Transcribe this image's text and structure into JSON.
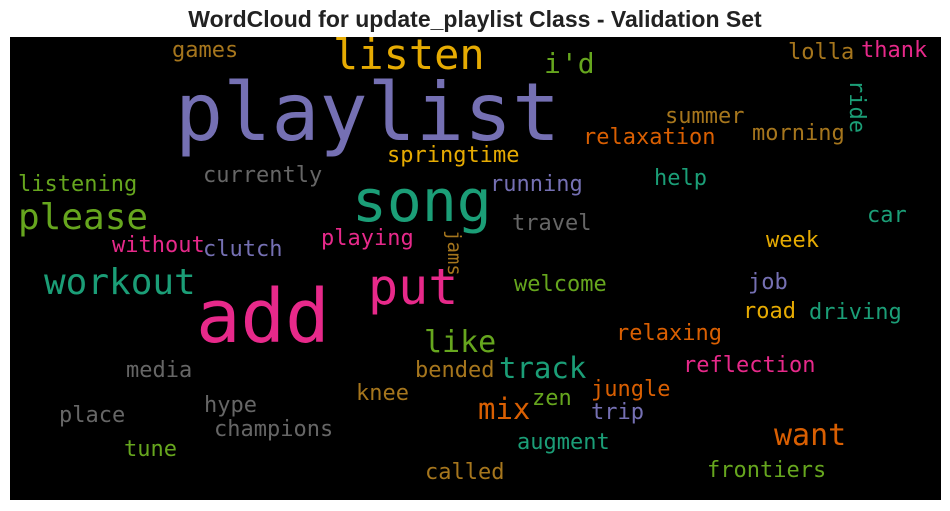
{
  "chart_data": {
    "type": "wordcloud",
    "title": "WordCloud for update_playlist Class - Validation Set",
    "background": "#000000",
    "words": [
      {
        "text": "playlist",
        "color": "#7570b3",
        "size": 1.0
      },
      {
        "text": "add",
        "color": "#e7298a",
        "size": 0.92
      },
      {
        "text": "song",
        "color": "#1b9e77",
        "size": 0.72
      },
      {
        "text": "put",
        "color": "#e7298a",
        "size": 0.62
      },
      {
        "text": "listen",
        "color": "#e6ab02",
        "size": 0.52
      },
      {
        "text": "please",
        "color": "#66a61e",
        "size": 0.45
      },
      {
        "text": "workout",
        "color": "#1b9e77",
        "size": 0.45
      },
      {
        "text": "want",
        "color": "#d95f02",
        "size": 0.38
      },
      {
        "text": "like",
        "color": "#66a61e",
        "size": 0.37
      },
      {
        "text": "track",
        "color": "#1b9e77",
        "size": 0.36
      },
      {
        "text": "mix",
        "color": "#d95f02",
        "size": 0.36
      },
      {
        "text": "i'd",
        "color": "#66a61e",
        "size": 0.35
      },
      {
        "text": "relaxation",
        "color": "#d95f02",
        "size": 0.27
      },
      {
        "text": "morning",
        "color": "#a6761d",
        "size": 0.27
      },
      {
        "text": "springtime",
        "color": "#e6ab02",
        "size": 0.27
      },
      {
        "text": "running",
        "color": "#7570b3",
        "size": 0.27
      },
      {
        "text": "currently",
        "color": "#666666",
        "size": 0.27
      },
      {
        "text": "summer",
        "color": "#a6761d",
        "size": 0.27
      },
      {
        "text": "listening",
        "color": "#66a61e",
        "size": 0.27
      },
      {
        "text": "help",
        "color": "#1b9e77",
        "size": 0.27
      },
      {
        "text": "thank",
        "color": "#e7298a",
        "size": 0.27
      },
      {
        "text": "lolla",
        "color": "#a6761d",
        "size": 0.27
      },
      {
        "text": "games",
        "color": "#a6761d",
        "size": 0.27
      },
      {
        "text": "travel",
        "color": "#666666",
        "size": 0.27
      },
      {
        "text": "car",
        "color": "#1b9e77",
        "size": 0.27
      },
      {
        "text": "week",
        "color": "#e6ab02",
        "size": 0.27
      },
      {
        "text": "playing",
        "color": "#e7298a",
        "size": 0.27
      },
      {
        "text": "clutch",
        "color": "#7570b3",
        "size": 0.27
      },
      {
        "text": "without",
        "color": "#e7298a",
        "size": 0.27
      },
      {
        "text": "welcome",
        "color": "#66a61e",
        "size": 0.27
      },
      {
        "text": "job",
        "color": "#7570b3",
        "size": 0.27
      },
      {
        "text": "road",
        "color": "#e6ab02",
        "size": 0.27
      },
      {
        "text": "driving",
        "color": "#1b9e77",
        "size": 0.27
      },
      {
        "text": "relaxing",
        "color": "#d95f02",
        "size": 0.27
      },
      {
        "text": "reflection",
        "color": "#e7298a",
        "size": 0.27
      },
      {
        "text": "media",
        "color": "#666666",
        "size": 0.27
      },
      {
        "text": "bended",
        "color": "#a6761d",
        "size": 0.27
      },
      {
        "text": "knee",
        "color": "#a6761d",
        "size": 0.27
      },
      {
        "text": "jungle",
        "color": "#d95f02",
        "size": 0.27
      },
      {
        "text": "zen",
        "color": "#66a61e",
        "size": 0.27
      },
      {
        "text": "trip",
        "color": "#7570b3",
        "size": 0.27
      },
      {
        "text": "hype",
        "color": "#666666",
        "size": 0.27
      },
      {
        "text": "place",
        "color": "#666666",
        "size": 0.27
      },
      {
        "text": "champions",
        "color": "#666666",
        "size": 0.27
      },
      {
        "text": "augment",
        "color": "#1b9e77",
        "size": 0.27
      },
      {
        "text": "tune",
        "color": "#66a61e",
        "size": 0.27
      },
      {
        "text": "frontiers",
        "color": "#66a61e",
        "size": 0.27
      },
      {
        "text": "called",
        "color": "#a6761d",
        "size": 0.27
      },
      {
        "text": "ride",
        "color": "#1b9e77",
        "size": 0.27,
        "vertical": true
      },
      {
        "text": "jams",
        "color": "#a6761d",
        "size": 0.24,
        "vertical": true
      }
    ]
  }
}
